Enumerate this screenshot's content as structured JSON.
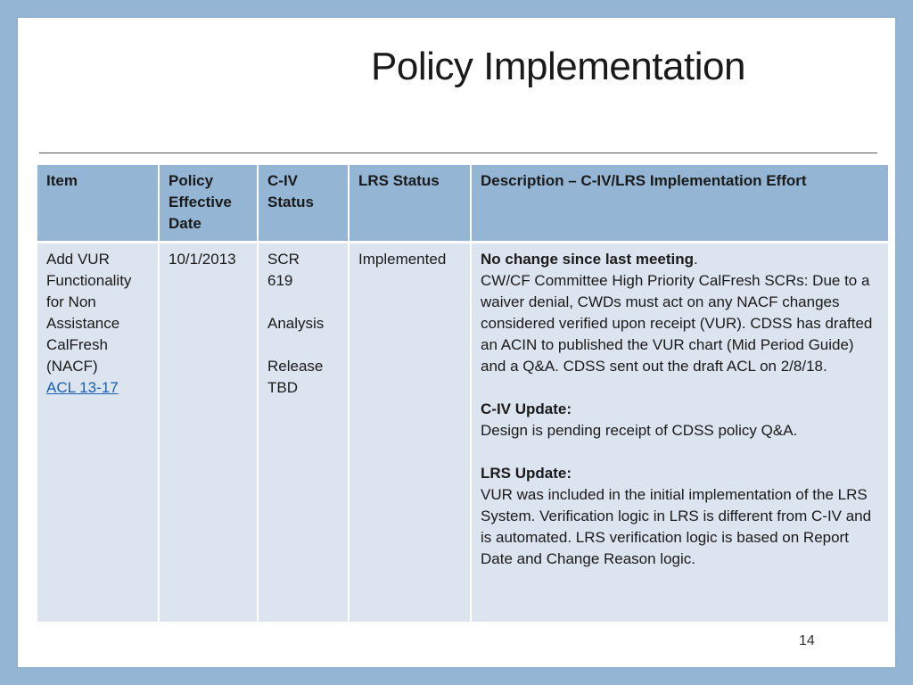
{
  "title": "Policy Implementation",
  "page_number": "14",
  "table": {
    "headers": {
      "item": "Item",
      "policy_date": "Policy Effective Date",
      "civ_status": "C-IV Status",
      "lrs_status": "LRS Status",
      "description": "Description – C-IV/LRS Implementation Effort"
    },
    "row": {
      "item_text": "Add VUR Functionality for Non Assistance CalFresh (NACF)",
      "item_link": "ACL 13-17",
      "policy_date": "10/1/2013",
      "civ_status": {
        "line1": "SCR",
        "line2": "619",
        "line3": "Analysis",
        "line4": "Release",
        "line5": "TBD"
      },
      "lrs_status": "Implemented",
      "description": {
        "lead_bold": "No change since last meeting",
        "lead_punct": ".",
        "para1": "CW/CF Committee High Priority CalFresh  SCRs:   Due to a waiver denial, CWDs must act on any NACF changes considered verified upon receipt (VUR). CDSS has drafted an ACIN to published the VUR chart  (Mid Period Guide) and a Q&A. CDSS sent out the draft ACL on 2/8/18.",
        "civ_heading": "C-IV  Update:",
        "civ_text": "Design is pending receipt of CDSS policy Q&A.",
        "lrs_heading": "LRS  Update:",
        "lrs_text": "VUR was included in the initial implementation of the LRS System. Verification logic in LRS is different from C-IV and is automated. LRS verification logic is based on Report Date and Change Reason logic."
      }
    }
  }
}
